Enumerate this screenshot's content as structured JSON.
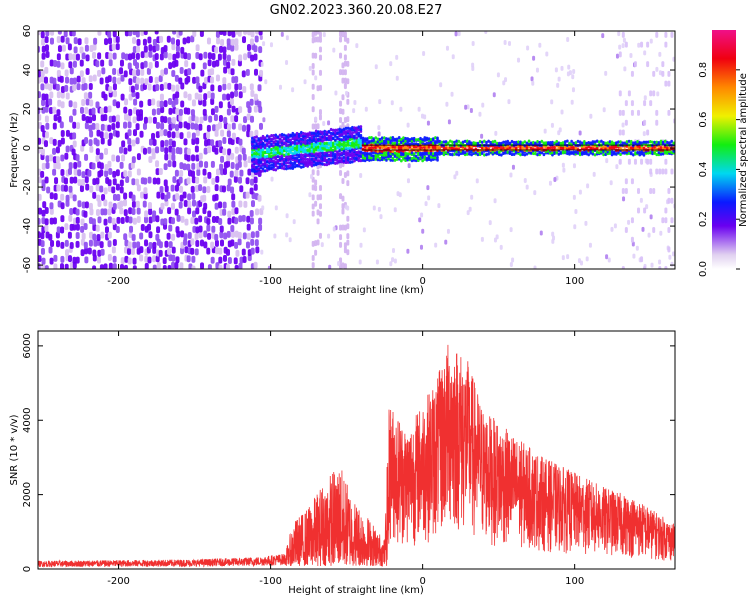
{
  "title": "GN02.2023.360.20.08.E27",
  "chart_data": [
    {
      "type": "heatmap",
      "xlabel": "Height of straight line (km)",
      "ylabel": "Frequency (Hz)",
      "xlim": [
        -253,
        166
      ],
      "ylim": [
        -62,
        60
      ],
      "xticks": [
        -200,
        -100,
        0,
        100
      ],
      "yticks": [
        -60,
        -40,
        -20,
        0,
        20,
        40,
        60
      ],
      "colorbar": {
        "label": "Normalized spectral amplitude",
        "range": [
          0,
          0.96
        ],
        "ticks": [
          0.0,
          0.2,
          0.4,
          0.6,
          0.8
        ],
        "colors": [
          "#e0d0f0",
          "#6a00f0",
          "#0a1aff",
          "#00d8f0",
          "#12ee10",
          "#f0f000",
          "#ff8800",
          "#f00010",
          "#f01088"
        ]
      },
      "description_regions": {
        "noise_band_x": [
          -253,
          -107
        ],
        "signal_onset_x": -110,
        "signal_center_hz": 0
      }
    },
    {
      "type": "line",
      "xlabel": "Height of straight line (km)",
      "ylabel": "SNR (10 * v/v)",
      "xlim": [
        -253,
        166
      ],
      "ylim": [
        0,
        6400
      ],
      "xticks": [
        -200,
        -100,
        0,
        100
      ],
      "yticks": [
        0,
        2000,
        4000,
        6000
      ],
      "series": [
        {
          "color": "#f03030",
          "envelope": [
            {
              "x": -253,
              "y": 220
            },
            {
              "x": -200,
              "y": 240
            },
            {
              "x": -150,
              "y": 260
            },
            {
              "x": -110,
              "y": 320
            },
            {
              "x": -90,
              "y": 420
            },
            {
              "x": -85,
              "y": 1200
            },
            {
              "x": -75,
              "y": 1600
            },
            {
              "x": -65,
              "y": 2300
            },
            {
              "x": -55,
              "y": 2800
            },
            {
              "x": -45,
              "y": 1800
            },
            {
              "x": -35,
              "y": 1300
            },
            {
              "x": -25,
              "y": 700
            },
            {
              "x": -22,
              "y": 4500
            },
            {
              "x": -10,
              "y": 3800
            },
            {
              "x": 0,
              "y": 4500
            },
            {
              "x": 10,
              "y": 5200
            },
            {
              "x": 18,
              "y": 6300
            },
            {
              "x": 30,
              "y": 5600
            },
            {
              "x": 40,
              "y": 4300
            },
            {
              "x": 60,
              "y": 3600
            },
            {
              "x": 80,
              "y": 3000
            },
            {
              "x": 100,
              "y": 2600
            },
            {
              "x": 120,
              "y": 2200
            },
            {
              "x": 140,
              "y": 1900
            },
            {
              "x": 166,
              "y": 1200
            }
          ]
        }
      ]
    }
  ]
}
